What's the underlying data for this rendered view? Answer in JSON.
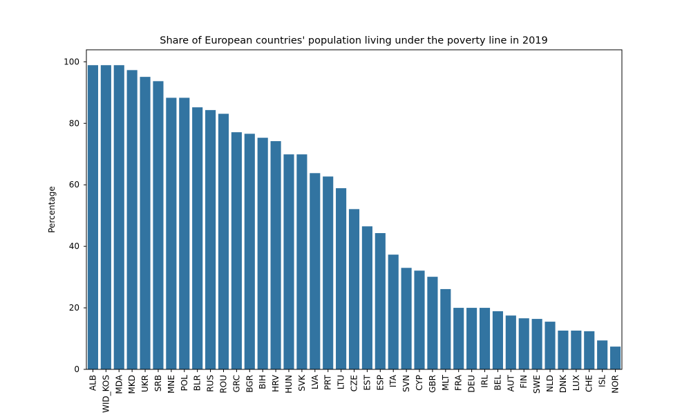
{
  "chart_data": {
    "type": "bar",
    "title": "Share of European countries' population living under the poverty line in 2019",
    "y_label": "Percentage",
    "categories": [
      "ALB",
      "WID_KOS",
      "MDA",
      "MKD",
      "UKR",
      "SRB",
      "MNE",
      "POL",
      "BLR",
      "RUS",
      "ROU",
      "GRC",
      "BGR",
      "BIH",
      "HRV",
      "HUN",
      "SVK",
      "LVA",
      "PRT",
      "LTU",
      "CZE",
      "EST",
      "ESP",
      "ITA",
      "SVN",
      "CYP",
      "GBR",
      "MLT",
      "FRA",
      "DEU",
      "IRL",
      "BEL",
      "AUT",
      "FIN",
      "SWE",
      "NLD",
      "DNK",
      "LUX",
      "CHE",
      "ISL",
      "NOR"
    ],
    "values": [
      98.9,
      98.9,
      98.9,
      97.3,
      95.1,
      93.7,
      88.3,
      88.3,
      85.2,
      84.3,
      83.1,
      77.1,
      76.6,
      75.3,
      74.2,
      69.9,
      69.9,
      63.8,
      62.7,
      58.9,
      52.1,
      46.5,
      44.3,
      37.3,
      33.0,
      32.1,
      30.1,
      26.1,
      20.0,
      20.0,
      20.0,
      18.9,
      17.5,
      16.6,
      16.4,
      15.5,
      12.6,
      12.6,
      12.4,
      9.4,
      7.4
    ],
    "color": "#3274a1",
    "ylim": [
      0,
      103.9
    ],
    "yticks": [
      0,
      20,
      40,
      60,
      80,
      100
    ],
    "grid": false
  }
}
